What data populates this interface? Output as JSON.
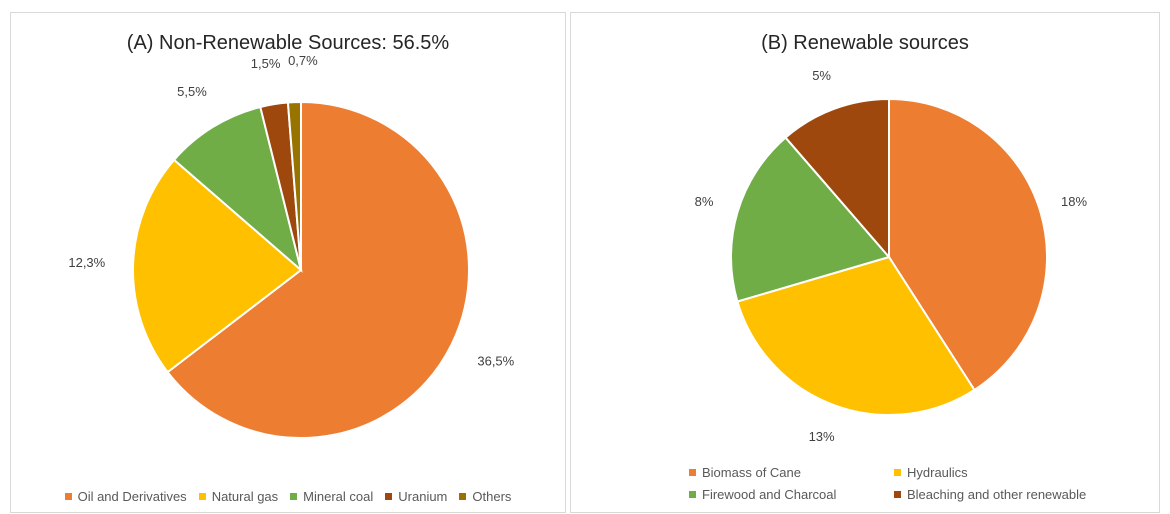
{
  "chart_data": [
    {
      "type": "pie",
      "title": "(A) Non-Renewable Sources: 56.5%",
      "categories": [
        "Oil and Derivatives",
        "Natural gas",
        "Mineral coal",
        "Uranium",
        "Others"
      ],
      "values": [
        36.5,
        12.3,
        5.5,
        1.5,
        0.7
      ],
      "data_labels": [
        "36,5%",
        "12,3%",
        "5,5%",
        "1,5%",
        "0,7%"
      ],
      "colors": [
        "#ED7D31",
        "#FFC000",
        "#70AD47",
        "#9E480E",
        "#997300"
      ],
      "legend_position": "bottom"
    },
    {
      "type": "pie",
      "title": "(B) Renewable sources",
      "categories": [
        "Biomass of Cane",
        "Hydraulics",
        "Firewood and Charcoal",
        "Bleaching and other renewable"
      ],
      "values": [
        18,
        13,
        8,
        5
      ],
      "data_labels": [
        "18%",
        "13%",
        "8%",
        "5%"
      ],
      "colors": [
        "#ED7D31",
        "#FFC000",
        "#70AD47",
        "#9E480E"
      ],
      "legend_position": "bottom"
    }
  ]
}
